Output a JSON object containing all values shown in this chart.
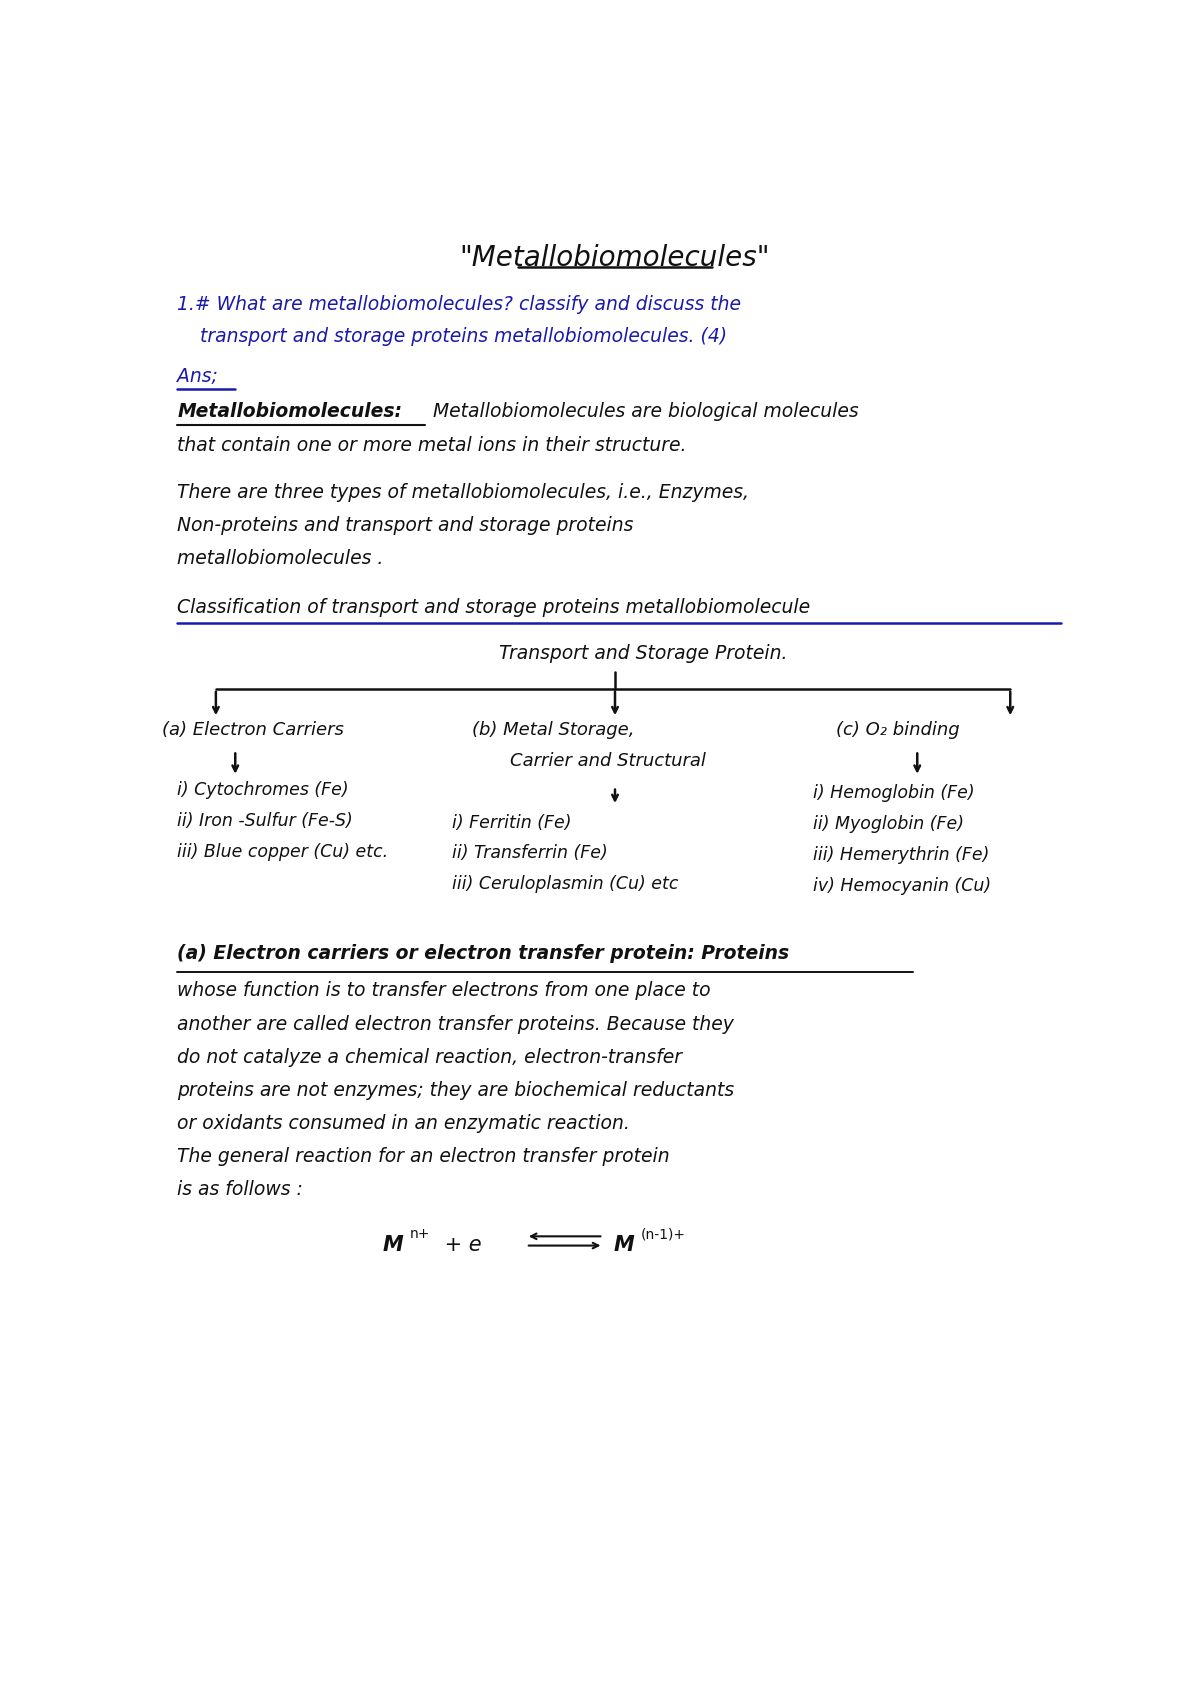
{
  "bg_color": "#ffffff",
  "title": "\"Metallobiomolecules\"",
  "blue_color": "#1a1aaa",
  "black_color": "#111111",
  "body_lines_1": [
    "There are three types of metallobiomolecules, i.e., Enzymes,",
    "Non-proteins and transport and storage proteins",
    "metallobiomolecules ."
  ],
  "body_lines_2": [
    "whose function is to transfer electrons from one place to",
    "another are called electron transfer proteins. Because they",
    "do not catalyze a chemical reaction, electron-transfer",
    "proteins are not enzymes; they are biochemical reductants",
    "or oxidants consumed in an enzymatic reaction.",
    "The general reaction for an electron transfer protein",
    "is as follows :"
  ]
}
